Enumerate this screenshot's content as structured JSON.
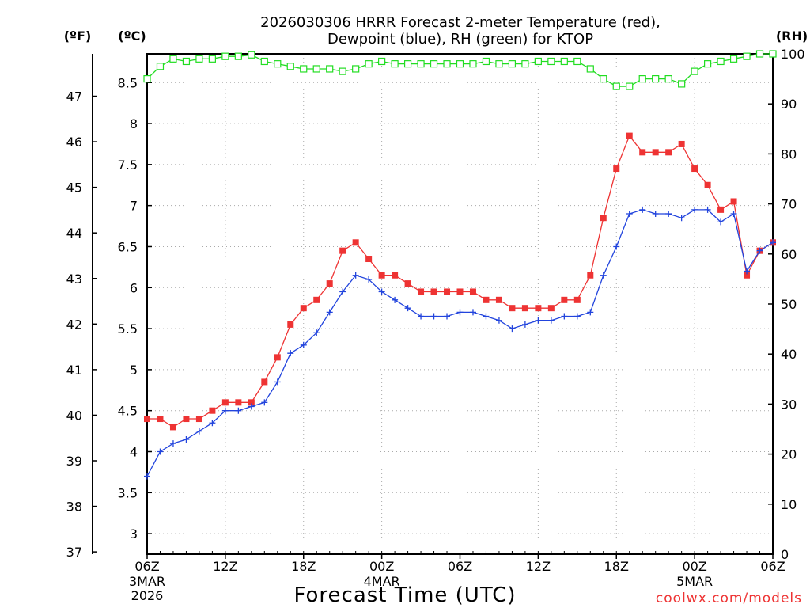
{
  "chart_data": {
    "type": "line",
    "title_line1": "2026030306 HRRR Forecast 2-meter Temperature (red),",
    "title_line2": "Dewpoint (blue), RH (green) for KTOP",
    "unit_left_f": "(ºF)",
    "unit_left_c": "(ºC)",
    "unit_right": "(RH)",
    "xlabel": "Forecast Time (UTC)",
    "credit": "coolwx.com/models",
    "hour_range": [
      0,
      48
    ],
    "celsius_range": [
      2.75,
      8.85
    ],
    "rh_range": [
      0,
      100
    ],
    "fahrenheit_ticks": [
      "37",
      "38",
      "39",
      "40",
      "41",
      "42",
      "43",
      "44",
      "45",
      "46",
      "47"
    ],
    "celsius_ticks": [
      "3",
      "3.5",
      "4",
      "4.5",
      "5",
      "5.5",
      "6",
      "6.5",
      "7",
      "7.5",
      "8",
      "8.5"
    ],
    "rh_ticks": [
      "0",
      "10",
      "20",
      "30",
      "40",
      "50",
      "60",
      "70",
      "80",
      "90",
      "100"
    ],
    "x_ticks": [
      {
        "hour": 0,
        "label": "06Z"
      },
      {
        "hour": 6,
        "label": "12Z"
      },
      {
        "hour": 12,
        "label": "18Z"
      },
      {
        "hour": 18,
        "label": "00Z"
      },
      {
        "hour": 24,
        "label": "06Z"
      },
      {
        "hour": 30,
        "label": "12Z"
      },
      {
        "hour": 36,
        "label": "18Z"
      },
      {
        "hour": 42,
        "label": "00Z"
      },
      {
        "hour": 48,
        "label": "06Z"
      }
    ],
    "date_labels": [
      {
        "hour": 0,
        "lines": [
          "3MAR",
          "2026"
        ]
      },
      {
        "hour": 18,
        "lines": [
          "4MAR"
        ]
      },
      {
        "hour": 42,
        "lines": [
          "5MAR"
        ]
      }
    ],
    "series": [
      {
        "name": "Temperature",
        "unit": "C",
        "color": "#ee3333",
        "marker": "filled-square",
        "values": [
          4.4,
          4.4,
          4.3,
          4.4,
          4.4,
          4.5,
          4.6,
          4.6,
          4.6,
          4.85,
          5.15,
          5.55,
          5.75,
          5.85,
          6.05,
          6.45,
          6.55,
          6.35,
          6.15,
          6.15,
          6.05,
          5.95,
          5.95,
          5.95,
          5.95,
          5.95,
          5.85,
          5.85,
          5.75,
          5.75,
          5.75,
          5.75,
          5.85,
          5.85,
          6.15,
          6.85,
          7.45,
          7.85,
          7.65,
          7.65,
          7.65,
          7.75,
          7.45,
          7.25,
          6.95,
          7.05,
          6.15,
          6.45,
          6.55
        ]
      },
      {
        "name": "Dewpoint",
        "unit": "C",
        "color": "#2244dd",
        "marker": "plus",
        "values": [
          3.7,
          4.0,
          4.1,
          4.15,
          4.25,
          4.35,
          4.5,
          4.5,
          4.55,
          4.6,
          4.85,
          5.2,
          5.3,
          5.45,
          5.7,
          5.95,
          6.15,
          6.1,
          5.95,
          5.85,
          5.75,
          5.65,
          5.65,
          5.65,
          5.7,
          5.7,
          5.65,
          5.6,
          5.5,
          5.55,
          5.6,
          5.6,
          5.65,
          5.65,
          5.7,
          6.15,
          6.5,
          6.9,
          6.95,
          6.9,
          6.9,
          6.85,
          6.95,
          6.95,
          6.8,
          6.9,
          6.2,
          6.45,
          6.55
        ]
      },
      {
        "name": "RH",
        "unit": "%",
        "color": "#22dd22",
        "marker": "open-square",
        "values": [
          95,
          97.5,
          99,
          98.5,
          99,
          99,
          99.5,
          99.5,
          99.8,
          98.5,
          98,
          97.5,
          97,
          97,
          97,
          96.5,
          97,
          98,
          98.5,
          98,
          98,
          98,
          98,
          98,
          98,
          98,
          98.5,
          98,
          98,
          98,
          98.5,
          98.5,
          98.5,
          98.5,
          97,
          95,
          93.5,
          93.5,
          95,
          95,
          95,
          94,
          96.5,
          98,
          98.5,
          99,
          99.5,
          100,
          100
        ]
      }
    ]
  }
}
